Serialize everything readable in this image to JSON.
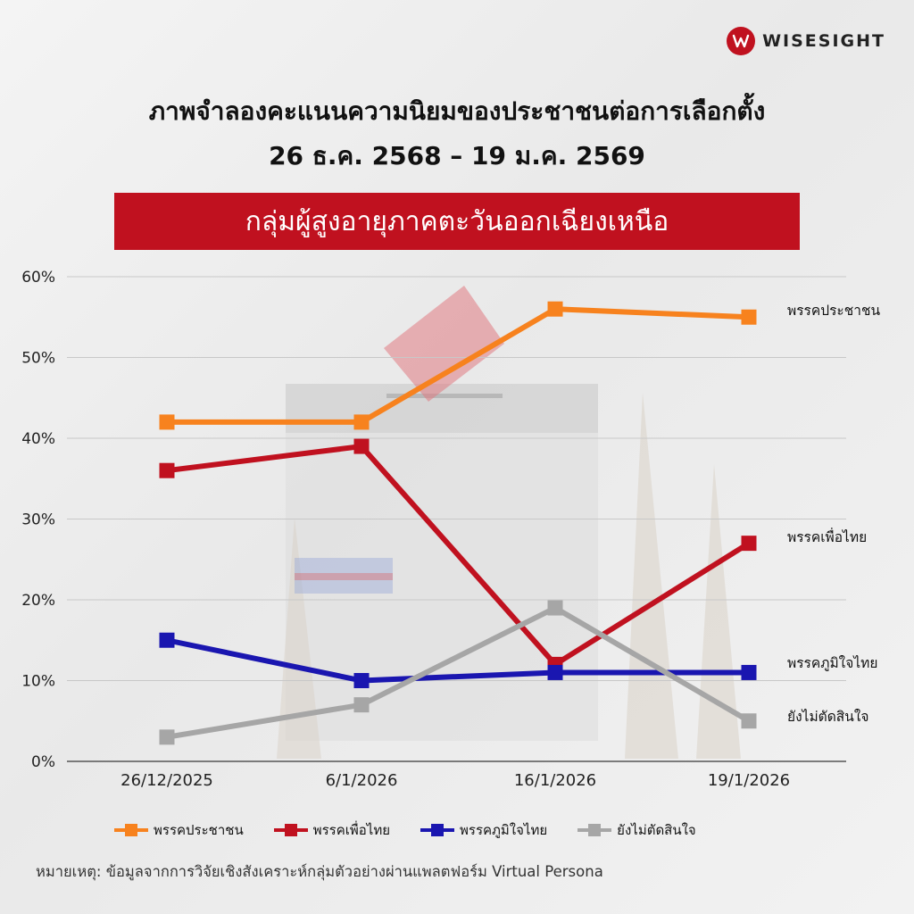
{
  "logo": {
    "text": "WISESIGHT"
  },
  "title_line1": "ภาพจำลองคะแนนความนิยมของประชาชนต่อการเลือกตั้ง",
  "title_line2": "26 ธ.ค. 2568 – 19 ม.ค. 2569",
  "banner": "กลุ่มผู้สูงอายุภาคตะวันออกเฉียงเหนือ",
  "note": "หมายเหตุ: ข้อมูลจากการวิจัยเชิงสังเคราะห์กลุ่มตัวอย่างผ่านแพลตฟอร์ม Virtual Persona",
  "chart_data": {
    "type": "line",
    "title": "ภาพจำลองคะแนนความนิยมของประชาชนต่อการเลือกตั้ง",
    "subtitle": "กลุ่มผู้สูงอายุภาคตะวันออกเฉียงเหนือ",
    "categories": [
      "26/12/2025",
      "6/1/2026",
      "16/1/2026",
      "19/1/2026"
    ],
    "y_ticks": [
      "0%",
      "10%",
      "20%",
      "30%",
      "40%",
      "50%",
      "60%"
    ],
    "ylim": [
      0,
      60
    ],
    "grid": true,
    "legend_position": "bottom",
    "series": [
      {
        "name": "พรรคประชาชน",
        "values": [
          42,
          42,
          56,
          55
        ],
        "color": "#f7821e"
      },
      {
        "name": "พรรคเพื่อไทย",
        "values": [
          36,
          39,
          12,
          27
        ],
        "color": "#c0111f"
      },
      {
        "name": "พรรคภูมิใจไทย",
        "values": [
          15,
          10,
          11,
          11
        ],
        "color": "#1a16b0"
      },
      {
        "name": "ยังไม่ตัดสินใจ",
        "values": [
          3,
          7,
          19,
          5
        ],
        "color": "#a6a6a6"
      }
    ]
  }
}
